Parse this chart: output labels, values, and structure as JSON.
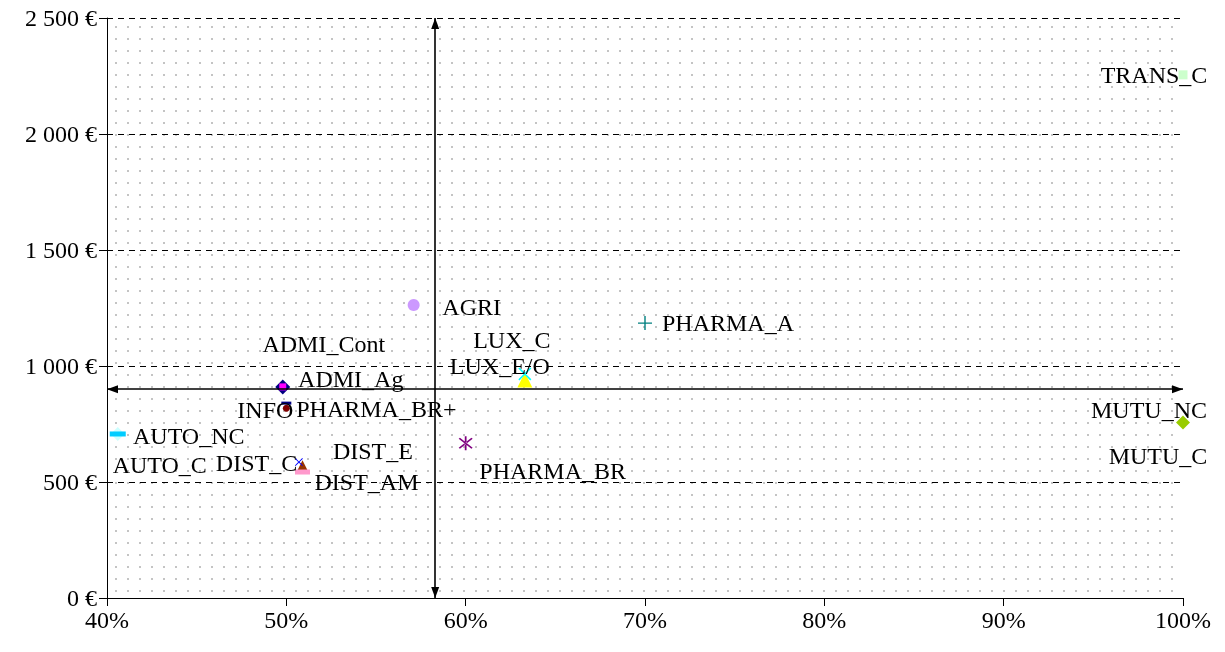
{
  "chart_data": {
    "type": "scatter",
    "xlim": [
      40,
      100
    ],
    "xticks": [
      {
        "value": 40,
        "label": "40%"
      },
      {
        "value": 50,
        "label": "50%"
      },
      {
        "value": 60,
        "label": "60%"
      },
      {
        "value": 70,
        "label": "70%"
      },
      {
        "value": 80,
        "label": "80%"
      },
      {
        "value": 90,
        "label": "90%"
      },
      {
        "value": 100,
        "label": "100%"
      }
    ],
    "ylim": [
      0,
      2500
    ],
    "yticks": [
      {
        "value": 0,
        "label": "0 €"
      },
      {
        "value": 500,
        "label": "500 €"
      },
      {
        "value": 1000,
        "label": "1 000 €"
      },
      {
        "value": 1500,
        "label": "1 500 €"
      },
      {
        "value": 2000,
        "label": "2 000 €"
      },
      {
        "value": 2500,
        "label": "2 500 €"
      }
    ],
    "grid": "y",
    "series": [
      {
        "name": "TRANS_C",
        "color": "#ccffcc",
        "marker": "square",
        "x": [
          100
        ],
        "values": [
          2255
        ]
      },
      {
        "name": "MUTU_NC",
        "color": "#99cc00",
        "marker": "diamond",
        "x": [
          100
        ],
        "values": [
          757
        ]
      },
      {
        "name": "PHARMA_A",
        "color": "#008080",
        "marker": "cross",
        "x": [
          70
        ],
        "values": [
          1185
        ]
      },
      {
        "name": "AGRI",
        "color": "#cc99ff",
        "marker": "circle",
        "x": [
          57.1
        ],
        "values": [
          1263
        ]
      },
      {
        "name": "LUX_E/O",
        "color": "#ffff00",
        "marker": "triangle",
        "x": [
          63.3
        ],
        "values": [
          940
        ]
      },
      {
        "name": "LUX_C",
        "color": "#00ffff",
        "marker": "cross",
        "x": [
          63.3
        ],
        "values": [
          966
        ]
      },
      {
        "name": "ADMI_Ag",
        "color": "#000080",
        "marker": "diamond",
        "x": [
          49.8
        ],
        "values": [
          910
        ]
      },
      {
        "name": "ADMI_Cont",
        "color": "#ff00ff",
        "marker": "square",
        "x": [
          49.8
        ],
        "values": [
          910
        ]
      },
      {
        "name": "INFO",
        "color": "#800000",
        "marker": "circle",
        "x": [
          50
        ],
        "values": [
          818
        ]
      },
      {
        "name": "PHARMA_BR+",
        "color": "#000080",
        "marker": "square",
        "x": [
          50
        ],
        "values": [
          840
        ]
      },
      {
        "name": "PHARMA_BR",
        "color": "#800080",
        "marker": "cross",
        "x": [
          60
        ],
        "values": [
          667
        ]
      },
      {
        "name": "AUTO_NC",
        "color": "#ccffff",
        "marker": "diamond",
        "x": [
          40.6
        ],
        "values": [
          707
        ]
      },
      {
        "name": "AUTO_C",
        "color": "#00ccff",
        "marker": "square",
        "x": [
          40.6
        ],
        "values": [
          707
        ]
      },
      {
        "name": "DIST_C",
        "color": "#993300",
        "marker": "triangle",
        "x": [
          50.9
        ],
        "values": [
          566
        ]
      },
      {
        "name": "DIST_AM",
        "color": "#ff99cc",
        "marker": "square",
        "x": [
          50.9
        ],
        "values": [
          543
        ]
      },
      {
        "name": "DIST_E",
        "color": "#0000ff",
        "marker": "cross",
        "x": [
          50.7
        ],
        "values": [
          586
        ]
      }
    ],
    "ref_lines": [
      {
        "axis": "x",
        "value": 58.3
      },
      {
        "axis": "y",
        "value": 900
      }
    ],
    "annotations": [
      {
        "text": "MUTU_C",
        "x": 100,
        "y": 757
      }
    ]
  }
}
